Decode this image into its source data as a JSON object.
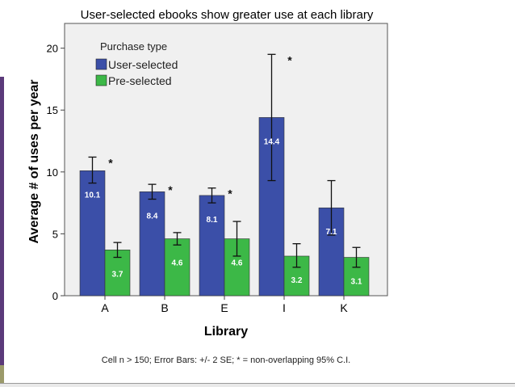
{
  "chart_data": {
    "type": "bar",
    "title": "User-selected ebooks show greater use at each library",
    "xlabel": "Library",
    "ylabel": "Average # of uses per year",
    "categories": [
      "A",
      "B",
      "E",
      "I",
      "K"
    ],
    "ylim": [
      0,
      22
    ],
    "yticks": [
      0,
      5,
      10,
      15,
      20
    ],
    "legend": {
      "title": "Purchase type",
      "position": "top-left"
    },
    "series": [
      {
        "name": "User-selected",
        "color": "#3b4fa8",
        "values": [
          10.1,
          8.4,
          8.1,
          14.4,
          7.1
        ],
        "value_labels": [
          "10.1",
          "8.4",
          "8.1",
          "14.4",
          "7.1"
        ],
        "error_low": [
          9.1,
          7.8,
          7.5,
          9.3,
          4.9
        ],
        "error_high": [
          11.2,
          9.0,
          8.7,
          19.5,
          9.3
        ]
      },
      {
        "name": "Pre-selected",
        "color": "#3cb847",
        "values": [
          3.7,
          4.6,
          4.6,
          3.2,
          3.1
        ],
        "value_labels": [
          "3.7",
          "4.6",
          "4.6",
          "3.2",
          "3.1"
        ],
        "error_low": [
          3.1,
          4.1,
          3.2,
          2.3,
          2.3
        ],
        "error_high": [
          4.3,
          5.1,
          6.0,
          4.2,
          3.9
        ]
      }
    ],
    "significance_marker": "*",
    "significant_categories": [
      "A",
      "B",
      "E",
      "I"
    ],
    "grid": false
  },
  "footnote": "Cell n > 150; Error Bars: +/- 2 SE; * = non-overlapping 95% C.I."
}
